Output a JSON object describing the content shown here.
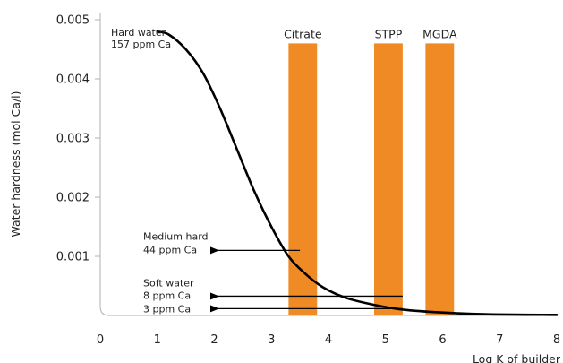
{
  "chart_data": {
    "type": "line",
    "title": "",
    "xlabel": "Log K of builder",
    "ylabel": "Water hardness (mol Ca/l)",
    "xlim": [
      0,
      8
    ],
    "ylim": [
      0,
      0.005
    ],
    "x_ticks": [
      "0",
      "1",
      "2",
      "3",
      "4",
      "5",
      "6",
      "7",
      "8"
    ],
    "y_ticks": [
      "0.001",
      "0.002",
      "0.003",
      "0.004",
      "0.005"
    ],
    "grid": false,
    "series": [
      {
        "values": [
          {
            "x": 1.0,
            "y": 0.0048
          },
          {
            "x": 1.2,
            "y": 0.00475
          },
          {
            "x": 1.5,
            "y": 0.0045
          },
          {
            "x": 1.8,
            "y": 0.0041
          },
          {
            "x": 2.1,
            "y": 0.0035
          },
          {
            "x": 2.4,
            "y": 0.0028
          },
          {
            "x": 2.7,
            "y": 0.0021
          },
          {
            "x": 3.0,
            "y": 0.0015
          },
          {
            "x": 3.3,
            "y": 0.001
          },
          {
            "x": 3.6,
            "y": 0.0007
          },
          {
            "x": 3.9,
            "y": 0.00048
          },
          {
            "x": 4.3,
            "y": 0.0003
          },
          {
            "x": 4.8,
            "y": 0.00018
          },
          {
            "x": 5.3,
            "y": 0.0001
          },
          {
            "x": 6.0,
            "y": 5e-05
          },
          {
            "x": 6.8,
            "y": 2e-05
          },
          {
            "x": 8.0,
            "y": 1e-05
          }
        ]
      }
    ],
    "bars": [
      {
        "label": "Citrate",
        "x_from": 3.3,
        "x_to": 3.8,
        "y_to": 0.0046
      },
      {
        "label": "STPP",
        "x_from": 4.8,
        "x_to": 5.3,
        "y_to": 0.0046
      },
      {
        "label": "MGDA",
        "x_from": 5.7,
        "x_to": 6.2,
        "y_to": 0.0046
      }
    ],
    "annotations": [
      {
        "lines": [
          "Hard water",
          "157 ppm Ca"
        ],
        "y": 0.00477
      },
      {
        "lines": [
          "Medium hard",
          "44 ppm Ca"
        ],
        "y": 0.0011,
        "arrow_from_x": 3.5
      },
      {
        "lines": [
          "Soft water",
          "8 ppm Ca"
        ],
        "y": 0.00019,
        "arrow_from_x": 5.3
      },
      {
        "lines": [
          "3 ppm Ca"
        ],
        "y": 7e-05,
        "arrow_from_x": 5.3
      }
    ],
    "colors": {
      "bars": "#f08a24",
      "curve": "#000000",
      "axis": "#b0b0b0",
      "arrows": "#000000"
    }
  }
}
